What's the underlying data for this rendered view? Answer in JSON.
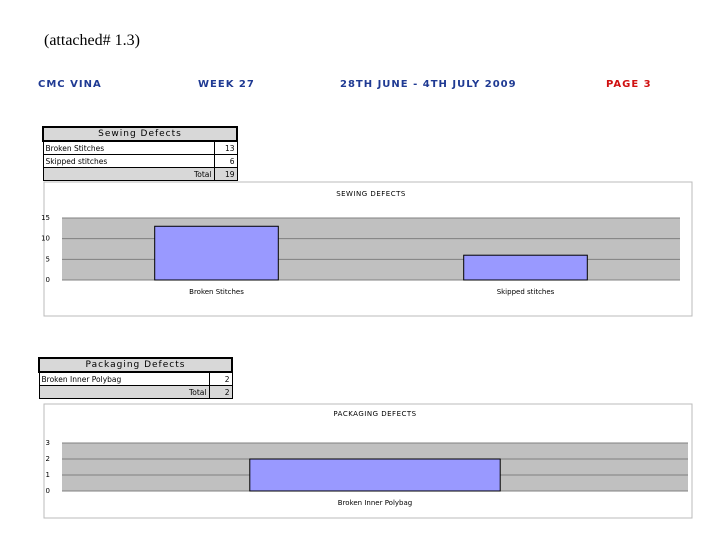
{
  "note": "(attached# 1.3)",
  "header": {
    "company": "CMC VINA",
    "week": "WEEK 27",
    "period": "28TH JUNE - 4TH JULY 2009",
    "page": "PAGE 3"
  },
  "sewing_table": {
    "title": "Sewing Defects",
    "rows": [
      [
        "Broken Stitches",
        13
      ],
      [
        "Skipped stitches",
        6
      ]
    ],
    "total_label": "Total",
    "total": 19
  },
  "packaging_table": {
    "title": "Packaging  Defects",
    "rows": [
      [
        "Broken Inner Polybag",
        2
      ]
    ],
    "total_label": "Total",
    "total": 2
  },
  "chart_data": [
    {
      "type": "bar",
      "title": "SEWING DEFECTS",
      "categories": [
        "Broken Stitches",
        "Skipped stitches"
      ],
      "values": [
        13,
        6
      ],
      "color": "#9999ff",
      "ylim": [
        0,
        15
      ],
      "yticks": [
        0,
        5,
        10,
        15
      ],
      "grid": true
    },
    {
      "type": "bar",
      "title": "PACKAGING DEFECTS",
      "categories": [
        "Broken Inner Polybag"
      ],
      "values": [
        2
      ],
      "color": "#9999ff",
      "ylim": [
        0,
        3
      ],
      "yticks": [
        0,
        1,
        2,
        3
      ],
      "grid": true
    }
  ]
}
